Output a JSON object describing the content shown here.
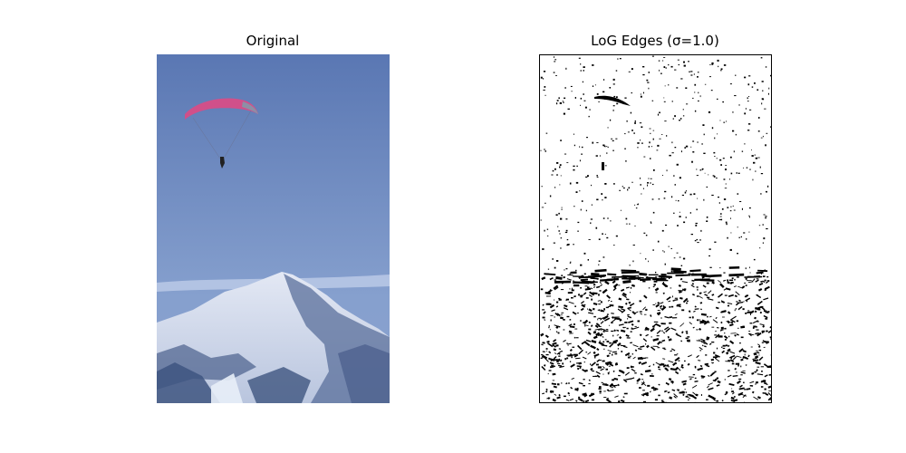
{
  "figure": {
    "panels": [
      {
        "title": "Original"
      },
      {
        "title": "LoG Edges (σ=1.0)"
      }
    ]
  },
  "colors": {
    "sky_top": "#5a77b3",
    "sky_bottom": "#8aa2cf",
    "canopy": "#d0508a",
    "mountain_shadow": "#3e5580",
    "snow": "#dfe6f3",
    "edge": "#000000"
  }
}
